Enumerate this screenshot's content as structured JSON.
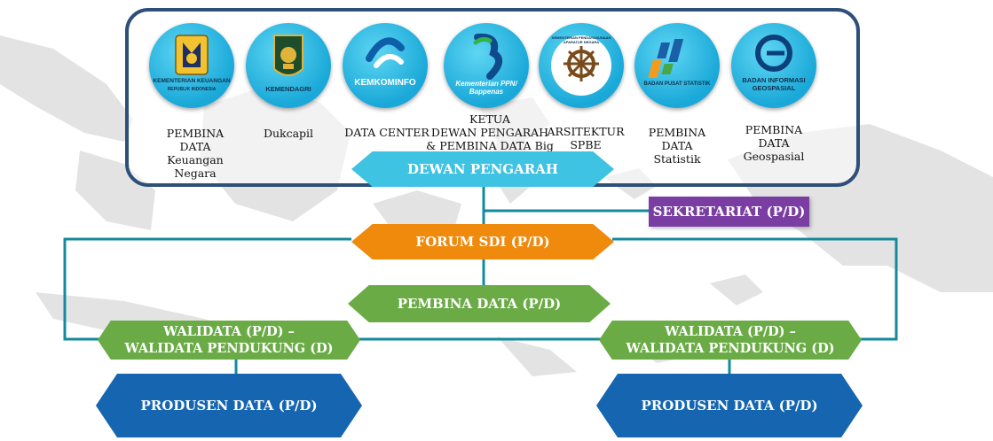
{
  "colors": {
    "frame": "#2d4f78",
    "line_teal": "#138a9e",
    "dewan": "#3ec3e3",
    "forum": "#ef8a0d",
    "pembina": "#6aab46",
    "walidata": "#6aab46",
    "produsen": "#1565b0",
    "sekretariat": "#7a3ea3"
  },
  "logos": [
    {
      "name": "kemenkeu",
      "text": "KEMENTERIAN KEUANGAN",
      "subtext": "REPUBLIK INDONESIA",
      "caption": "PEMBINA\nDATA\nKeuangan\nNegara"
    },
    {
      "name": "kemendagri",
      "text": "KEMENDAGRI",
      "subtext": "",
      "caption": "Dukcapil"
    },
    {
      "name": "kemkominfo",
      "text": "KEMKOMINFO",
      "subtext": "",
      "caption": "DATA CENTER"
    },
    {
      "name": "bappenas",
      "text": "Kementerian PPN/\nBappenas",
      "subtext": "",
      "caption": "KETUA\nDEWAN PENGARAH\n& PEMBINA DATA Big Data"
    },
    {
      "name": "panrb",
      "text": "KEMENTERIAN PENDAYAGUNAAN APARATUR NEGARA",
      "subtext": "",
      "caption": "ARSITEKTUR\nSPBE"
    },
    {
      "name": "bps",
      "text": "BADAN PUSAT STATISTIK",
      "subtext": "",
      "caption": "PEMBINA\nDATA\nStatistik"
    },
    {
      "name": "big",
      "text": "BADAN INFORMASI\nGEOSPASIAL",
      "subtext": "",
      "caption": "PEMBINA\nDATA\nGeospasial"
    }
  ],
  "boxes": {
    "dewan_pengarah": "DEWAN PENGARAH",
    "sekretariat": "SEKRETARIAT (P/D)",
    "forum_sdi": "FORUM SDI (P/D)",
    "pembina_data": "PEMBINA DATA (P/D)",
    "walidata_left": "WALIDATA (P/D) –\nWALIDATA PENDUKUNG  (D)",
    "walidata_right": "WALIDATA (P/D) –\nWALIDATA PENDUKUNG (D)",
    "produsen_left": "PRODUSEN DATA (P/D)",
    "produsen_right": "PRODUSEN DATA (P/D)"
  }
}
